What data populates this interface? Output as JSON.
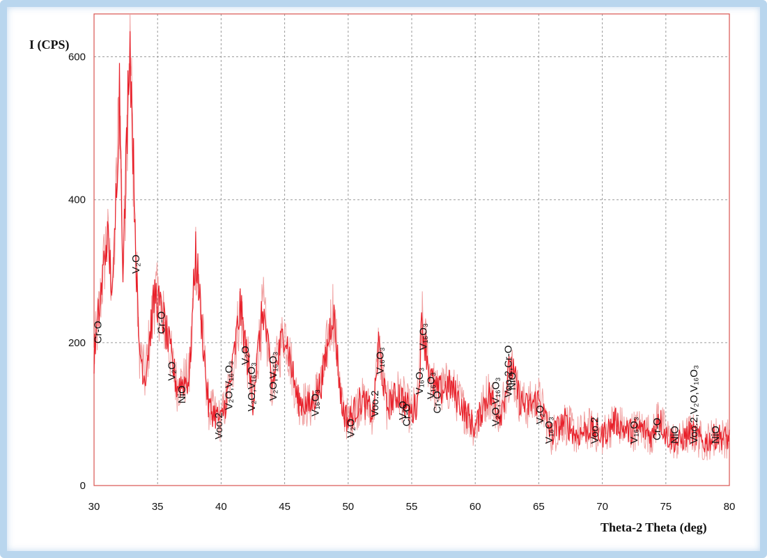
{
  "chart_data": {
    "type": "line",
    "ylabel": "I (CPS)",
    "xlabel": "Theta-2 Theta (deg)",
    "xlim": [
      30,
      80
    ],
    "ylim": [
      0,
      660
    ],
    "xticks": [
      "30",
      "35",
      "40",
      "45",
      "50",
      "55",
      "60",
      "65",
      "70",
      "75",
      "80"
    ],
    "yticks": [
      "0",
      "200",
      "400",
      "600"
    ],
    "grid": true,
    "colors": {
      "series": "#e8202a",
      "series_light": "#f0a0a0",
      "grid": "#9a9a9a",
      "axes": "#d9534f"
    },
    "series": [
      {
        "x": [
          30,
          30.5,
          31,
          31.5,
          32,
          32.3,
          32.8,
          33.5,
          34,
          34.8,
          35.5,
          36.5,
          37.5,
          38,
          39,
          40,
          40.8,
          41.5,
          42.5,
          43.3,
          44,
          45,
          46,
          47,
          48,
          48.8,
          49.5,
          50,
          51,
          52,
          52.4,
          53,
          54,
          55,
          55.5,
          55.8,
          56.5,
          57,
          58,
          59,
          60,
          61,
          62,
          62.8,
          63.5,
          64,
          65,
          66,
          67,
          68,
          69,
          70,
          71,
          72,
          73,
          74,
          74.4,
          75,
          76,
          77,
          78,
          79,
          80
        ],
        "y": [
          180,
          260,
          350,
          270,
          560,
          300,
          640,
          200,
          150,
          270,
          230,
          140,
          150,
          330,
          110,
          90,
          150,
          250,
          120,
          250,
          140,
          220,
          120,
          110,
          150,
          250,
          110,
          90,
          120,
          100,
          200,
          110,
          130,
          100,
          120,
          230,
          150,
          130,
          140,
          110,
          80,
          130,
          100,
          170,
          120,
          110,
          120,
          70,
          90,
          70,
          80,
          70,
          90,
          75,
          80,
          70,
          100,
          70,
          60,
          75,
          60,
          70,
          65
        ]
      }
    ],
    "annotations": [
      {
        "text": "Cr-O",
        "x": 30.3
      },
      {
        "text": "V₂O",
        "x": 33.3
      },
      {
        "text": "Cr-O",
        "x": 35.3
      },
      {
        "text": "V₂O",
        "x": 36.1
      },
      {
        "text": "NiO",
        "x": 36.9
      },
      {
        "text": "Voo.2",
        "x": 39.8
      },
      {
        "text": "V₂O,V₁₆O₃",
        "x": 40.6
      },
      {
        "text": "V₂O",
        "x": 41.9
      },
      {
        "text": "V₂O,V₁₆O₃",
        "x": 42.4
      },
      {
        "text": "V₂O,V₁₆O₃",
        "x": 44.1
      },
      {
        "text": "V₁₆O₃",
        "x": 47.4
      },
      {
        "text": "V₂O",
        "x": 50.2
      },
      {
        "text": "Voo.2",
        "x": 52.1
      },
      {
        "text": "V₁₆O₃",
        "x": 52.5
      },
      {
        "text": "V₂O",
        "x": 54.3
      },
      {
        "text": "Cr-O",
        "x": 54.6
      },
      {
        "text": "V₁₆O₃",
        "x": 55.6
      },
      {
        "text": "V₁₆O₃",
        "x": 55.9
      },
      {
        "text": "V₁₆O₃",
        "x": 56.5
      },
      {
        "text": "Cr-O",
        "x": 57
      },
      {
        "text": "V₂O,V₁₆O₃",
        "x": 61.6
      },
      {
        "text": "NiO",
        "x": 62.9
      },
      {
        "text": "Voo.2,Cr-O",
        "x": 62.6
      },
      {
        "text": "V₂O",
        "x": 65.1
      },
      {
        "text": "V₁₆O₃",
        "x": 65.8
      },
      {
        "text": "Voo.2",
        "x": 69.4
      },
      {
        "text": "V₁₆O₃",
        "x": 72.5
      },
      {
        "text": "Cr-O",
        "x": 74.3
      },
      {
        "text": "NiO",
        "x": 75.7
      },
      {
        "text": "Voo.2,V₂O,V₁₆O₃",
        "x": 77.2
      },
      {
        "text": "NiO",
        "x": 78.9
      }
    ]
  }
}
